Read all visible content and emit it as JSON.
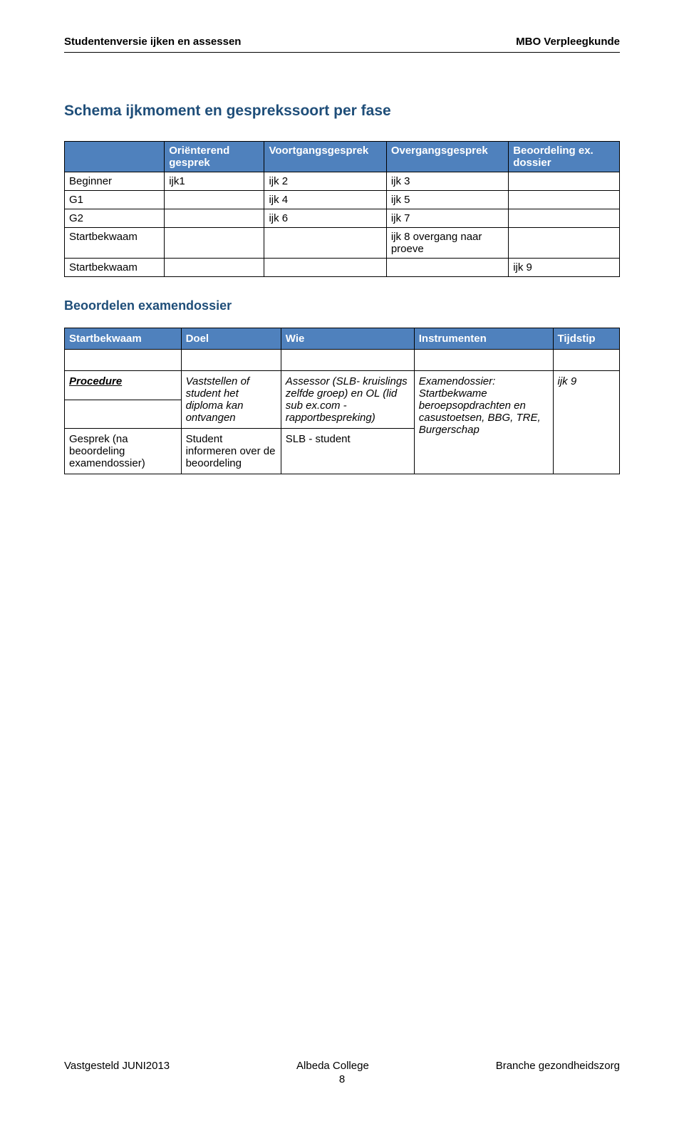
{
  "header": {
    "left": "Studentenversie ijken en assessen",
    "right": "MBO Verpleegkunde"
  },
  "colors": {
    "heading_blue": "#1f4e79",
    "table_header_bg": "#4f81bd",
    "table_header_text": "#ffffff",
    "border": "#000000",
    "text": "#000000",
    "background": "#ffffff"
  },
  "section1": {
    "title": "Schema ijkmoment en gesprekssoort per fase"
  },
  "table1": {
    "columns": [
      "",
      "Oriënterend gesprek",
      "Voortgangsgesprek",
      "Overgangsgesprek",
      "Beoordeling ex. dossier"
    ],
    "col_widths_pct": [
      18,
      18,
      22,
      22,
      20
    ],
    "rows": [
      {
        "label": "Beginner",
        "cells": [
          "ijk1",
          "ijk 2",
          "ijk 3",
          ""
        ]
      },
      {
        "label": "G1",
        "cells": [
          "",
          "ijk 4",
          "ijk 5",
          ""
        ]
      },
      {
        "label": "G2",
        "cells": [
          "",
          "ijk 6",
          "ijk 7",
          ""
        ]
      },
      {
        "label": "Startbekwaam",
        "cells": [
          "",
          "",
          "ijk 8 overgang naar proeve",
          ""
        ]
      },
      {
        "label": "Startbekwaam",
        "cells": [
          "",
          "",
          "",
          "ijk 9"
        ]
      }
    ]
  },
  "section2": {
    "title": "Beoordelen examendossier"
  },
  "table2": {
    "headers": [
      "Startbekwaam",
      "Doel",
      "Wie",
      "Instrumenten",
      "Tijdstip"
    ],
    "col_widths_pct": [
      21,
      18,
      24,
      25,
      12
    ],
    "row1": {
      "c0": "Procedure",
      "c1": "Vaststellen of student het diploma kan ontvangen",
      "c2": "Assessor (SLB- kruislings zelfde groep) en OL (lid sub ex.com - rapportbespreking)",
      "c3": "Examendossier: Startbekwame beroepsopdrachten en casustoetsen, BBG, TRE, Burgerschap",
      "c4": "ijk 9"
    },
    "row2": {
      "c0": "Gesprek (na beoordeling examendossier)",
      "c1": "Student informeren over de beoordeling",
      "c2": "SLB - student"
    }
  },
  "footer": {
    "left": "Vastgesteld JUNI2013",
    "center": "Albeda College",
    "right": "Branche gezondheidszorg",
    "page_number": "8"
  }
}
